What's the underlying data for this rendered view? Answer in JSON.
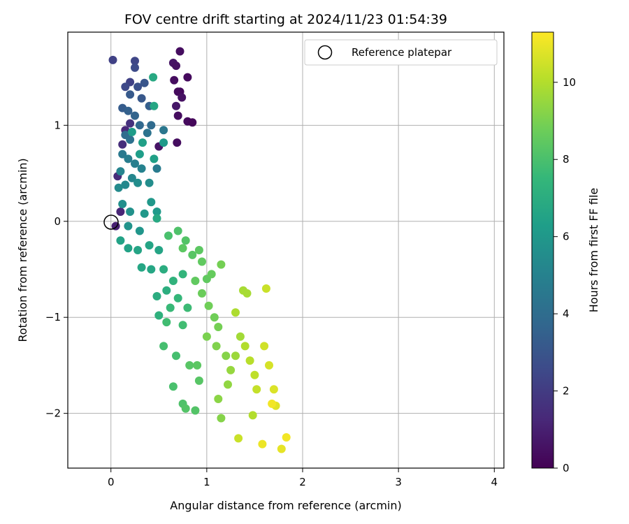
{
  "chart_data": {
    "type": "scatter",
    "title": "FOV centre drift starting at 2024/11/23 01:54:39",
    "xlabel": "Angular distance from reference (arcmin)",
    "ylabel": "Rotation from reference (arcmin)",
    "xlim": [
      -0.45,
      4.1
    ],
    "ylim": [
      -2.57,
      1.97
    ],
    "x_ticks": [
      0,
      1,
      2,
      3,
      4
    ],
    "y_ticks": [
      -2,
      -1,
      0,
      1
    ],
    "grid": true,
    "legend": {
      "placement": "top-right",
      "entries": [
        "Reference platepar"
      ]
    },
    "reference_point": {
      "x": 0,
      "y": 0,
      "marker": "open-circle",
      "color": "#000000"
    },
    "colorbar": {
      "label": "Hours from first FF file",
      "range": [
        0,
        11.3
      ],
      "ticks": [
        0,
        2,
        4,
        6,
        8,
        10
      ],
      "colormap": "viridis",
      "colors": [
        "#440154",
        "#482878",
        "#3e4989",
        "#31688e",
        "#26828e",
        "#1f9e89",
        "#35b779",
        "#6ece58",
        "#b5de2b",
        "#fde725"
      ]
    },
    "series": [
      {
        "points": [
          [
            0.8,
            1.5,
            0.3
          ],
          [
            0.72,
            1.77,
            0.4
          ],
          [
            0.65,
            1.65,
            0.6
          ],
          [
            0.68,
            1.62,
            0.5
          ],
          [
            0.72,
            1.35,
            0.2
          ],
          [
            0.7,
            1.35,
            0.3
          ],
          [
            0.66,
            1.47,
            0.4
          ],
          [
            0.74,
            1.29,
            0.5
          ],
          [
            0.68,
            1.2,
            0.7
          ],
          [
            0.7,
            1.1,
            0.4
          ],
          [
            0.8,
            1.04,
            0.3
          ],
          [
            0.85,
            1.03,
            0.2
          ],
          [
            0.5,
            0.78,
            0.6
          ],
          [
            0.69,
            0.82,
            0.4
          ],
          [
            0.05,
            -0.05,
            1.0
          ],
          [
            0.1,
            0.1,
            1.2
          ],
          [
            0.07,
            0.47,
            1.4
          ],
          [
            0.12,
            0.8,
            1.5
          ],
          [
            0.15,
            0.95,
            1.3
          ],
          [
            0.2,
            1.02,
            1.6
          ],
          [
            0.02,
            1.68,
            2.2
          ],
          [
            0.25,
            1.67,
            2.4
          ],
          [
            0.25,
            1.6,
            2.6
          ],
          [
            0.2,
            1.45,
            2.2
          ],
          [
            0.15,
            1.4,
            2.5
          ],
          [
            0.28,
            1.4,
            2.8
          ],
          [
            0.35,
            1.44,
            3.0
          ],
          [
            0.2,
            1.32,
            3.2
          ],
          [
            0.32,
            1.28,
            3.1
          ],
          [
            0.12,
            1.18,
            3.3
          ],
          [
            0.18,
            1.15,
            3.5
          ],
          [
            0.25,
            1.1,
            3.6
          ],
          [
            0.4,
            1.2,
            3.4
          ],
          [
            0.3,
            1.0,
            3.8
          ],
          [
            0.42,
            1.0,
            3.9
          ],
          [
            0.15,
            0.9,
            4.0
          ],
          [
            0.2,
            0.85,
            4.2
          ],
          [
            0.38,
            0.92,
            4.3
          ],
          [
            0.55,
            0.95,
            4.5
          ],
          [
            0.12,
            0.7,
            4.6
          ],
          [
            0.18,
            0.65,
            4.8
          ],
          [
            0.25,
            0.6,
            4.9
          ],
          [
            0.32,
            0.55,
            5.0
          ],
          [
            0.48,
            0.55,
            4.7
          ],
          [
            0.1,
            0.52,
            5.1
          ],
          [
            0.22,
            0.45,
            5.2
          ],
          [
            0.15,
            0.38,
            5.3
          ],
          [
            0.08,
            0.35,
            5.4
          ],
          [
            0.28,
            0.4,
            5.5
          ],
          [
            0.4,
            0.4,
            5.5
          ],
          [
            0.12,
            0.18,
            5.6
          ],
          [
            0.2,
            0.1,
            5.7
          ],
          [
            0.18,
            -0.05,
            5.8
          ],
          [
            0.3,
            -0.1,
            5.9
          ],
          [
            0.35,
            0.08,
            6.0
          ],
          [
            0.42,
            0.2,
            6.0
          ],
          [
            0.48,
            0.1,
            6.1
          ],
          [
            0.55,
            0.82,
            6.1
          ],
          [
            0.22,
            0.93,
            6.2
          ],
          [
            0.3,
            0.7,
            6.3
          ],
          [
            0.45,
            0.65,
            6.4
          ],
          [
            0.33,
            0.82,
            6.4
          ],
          [
            0.1,
            -0.2,
            6.5
          ],
          [
            0.18,
            -0.28,
            6.5
          ],
          [
            0.28,
            -0.3,
            6.6
          ],
          [
            0.4,
            -0.25,
            6.6
          ],
          [
            0.5,
            -0.3,
            6.6
          ],
          [
            0.32,
            -0.48,
            6.7
          ],
          [
            0.42,
            -0.5,
            6.7
          ],
          [
            0.45,
            1.2,
            6.7
          ],
          [
            0.44,
            1.5,
            6.8
          ],
          [
            0.48,
            0.03,
            6.8
          ],
          [
            0.55,
            -0.5,
            7.0
          ],
          [
            0.48,
            -0.78,
            7.0
          ],
          [
            0.58,
            -0.72,
            7.1
          ],
          [
            0.5,
            -0.98,
            7.2
          ],
          [
            0.65,
            -0.62,
            7.3
          ],
          [
            0.75,
            -0.55,
            7.4
          ],
          [
            0.7,
            -0.8,
            7.5
          ],
          [
            0.62,
            -0.9,
            7.6
          ],
          [
            0.8,
            -0.9,
            7.7
          ],
          [
            0.58,
            -1.05,
            7.8
          ],
          [
            0.75,
            -1.08,
            7.8
          ],
          [
            0.55,
            -1.3,
            7.9
          ],
          [
            0.68,
            -1.4,
            7.9
          ],
          [
            0.65,
            -1.72,
            8.0
          ],
          [
            0.75,
            -1.9,
            8.1
          ],
          [
            0.78,
            -1.95,
            8.2
          ],
          [
            0.88,
            -1.97,
            8.2
          ],
          [
            0.92,
            -1.66,
            8.3
          ],
          [
            0.82,
            -1.5,
            8.3
          ],
          [
            0.9,
            -1.5,
            8.4
          ],
          [
            0.6,
            -0.15,
            8.0
          ],
          [
            0.7,
            -0.1,
            8.1
          ],
          [
            0.78,
            -0.2,
            8.2
          ],
          [
            0.85,
            -0.35,
            8.3
          ],
          [
            0.92,
            -0.3,
            8.4
          ],
          [
            0.95,
            -0.42,
            8.5
          ],
          [
            1.0,
            -0.6,
            8.5
          ],
          [
            1.05,
            -0.55,
            8.6
          ],
          [
            0.75,
            -0.28,
            8.4
          ],
          [
            0.88,
            -0.62,
            8.5
          ],
          [
            0.95,
            -0.75,
            8.7
          ],
          [
            1.02,
            -0.88,
            8.8
          ],
          [
            1.08,
            -1.0,
            8.8
          ],
          [
            1.12,
            -1.1,
            8.9
          ],
          [
            1.15,
            -0.45,
            8.9
          ],
          [
            1.0,
            -1.2,
            9.0
          ],
          [
            1.1,
            -1.3,
            9.1
          ],
          [
            1.2,
            -1.4,
            9.2
          ],
          [
            1.12,
            -1.85,
            9.3
          ],
          [
            1.15,
            -2.05,
            9.2
          ],
          [
            1.22,
            -1.7,
            9.4
          ],
          [
            1.25,
            -1.55,
            9.5
          ],
          [
            1.3,
            -1.4,
            9.6
          ],
          [
            1.35,
            -1.2,
            9.7
          ],
          [
            1.38,
            -0.72,
            9.8
          ],
          [
            1.42,
            -0.75,
            9.8
          ],
          [
            1.3,
            -0.95,
            9.9
          ],
          [
            1.4,
            -1.3,
            10.0
          ],
          [
            1.45,
            -1.45,
            10.1
          ],
          [
            1.5,
            -1.6,
            10.2
          ],
          [
            1.48,
            -2.02,
            10.0
          ],
          [
            1.52,
            -1.75,
            10.3
          ],
          [
            1.33,
            -2.26,
            10.4
          ],
          [
            1.62,
            -0.7,
            10.4
          ],
          [
            1.6,
            -1.3,
            10.5
          ],
          [
            1.65,
            -1.5,
            10.6
          ],
          [
            1.7,
            -1.75,
            10.7
          ],
          [
            1.72,
            -1.92,
            10.8
          ],
          [
            1.78,
            -2.37,
            10.9
          ],
          [
            1.58,
            -2.32,
            11.0
          ],
          [
            1.83,
            -2.25,
            11.1
          ],
          [
            1.68,
            -1.9,
            11.1
          ]
        ]
      }
    ]
  }
}
